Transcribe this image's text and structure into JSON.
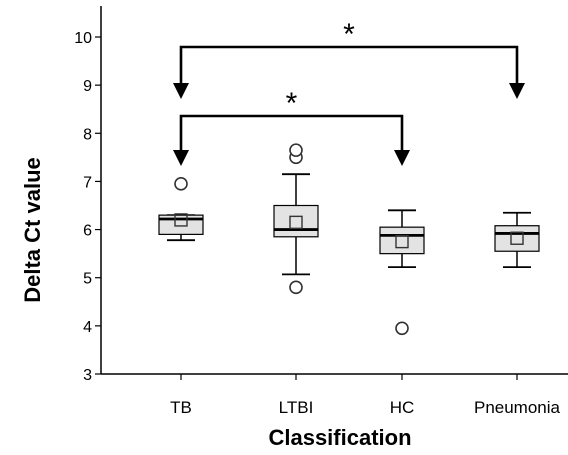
{
  "chart_data": {
    "type": "box",
    "xlabel": "Classification",
    "ylabel": "Delta Ct value",
    "ylim": [
      3,
      10.6
    ],
    "yticks": [
      3,
      4,
      5,
      6,
      7,
      8,
      9,
      10
    ],
    "yticklabels": [
      "3",
      "4",
      "5",
      "6",
      "7",
      "8",
      "9",
      "10"
    ],
    "categories": [
      "TB",
      "LTBI",
      "HC",
      "Pneumonia"
    ],
    "boxes": [
      {
        "category": "TB",
        "whisker_low": 5.78,
        "q1": 5.9,
        "median": 6.22,
        "q3": 6.3,
        "whisker_high": 6.3,
        "mean": 6.2,
        "outliers": [
          6.95
        ]
      },
      {
        "category": "LTBI",
        "whisker_low": 5.07,
        "q1": 5.85,
        "median": 6.0,
        "q3": 6.5,
        "whisker_high": 7.15,
        "mean": 6.15,
        "outliers": [
          4.8,
          7.5,
          7.65
        ]
      },
      {
        "category": "HC",
        "whisker_low": 5.22,
        "q1": 5.5,
        "median": 5.88,
        "q3": 6.05,
        "whisker_high": 6.4,
        "mean": 5.75,
        "outliers": [
          3.95
        ]
      },
      {
        "category": "Pneumonia",
        "whisker_low": 5.22,
        "q1": 5.55,
        "median": 5.92,
        "q3": 6.08,
        "whisker_high": 6.35,
        "mean": 5.82,
        "outliers": []
      }
    ],
    "significance": [
      {
        "from": "TB",
        "to": "Pneumonia",
        "label": "*"
      },
      {
        "from": "TB",
        "to": "HC",
        "label": "*"
      }
    ]
  }
}
